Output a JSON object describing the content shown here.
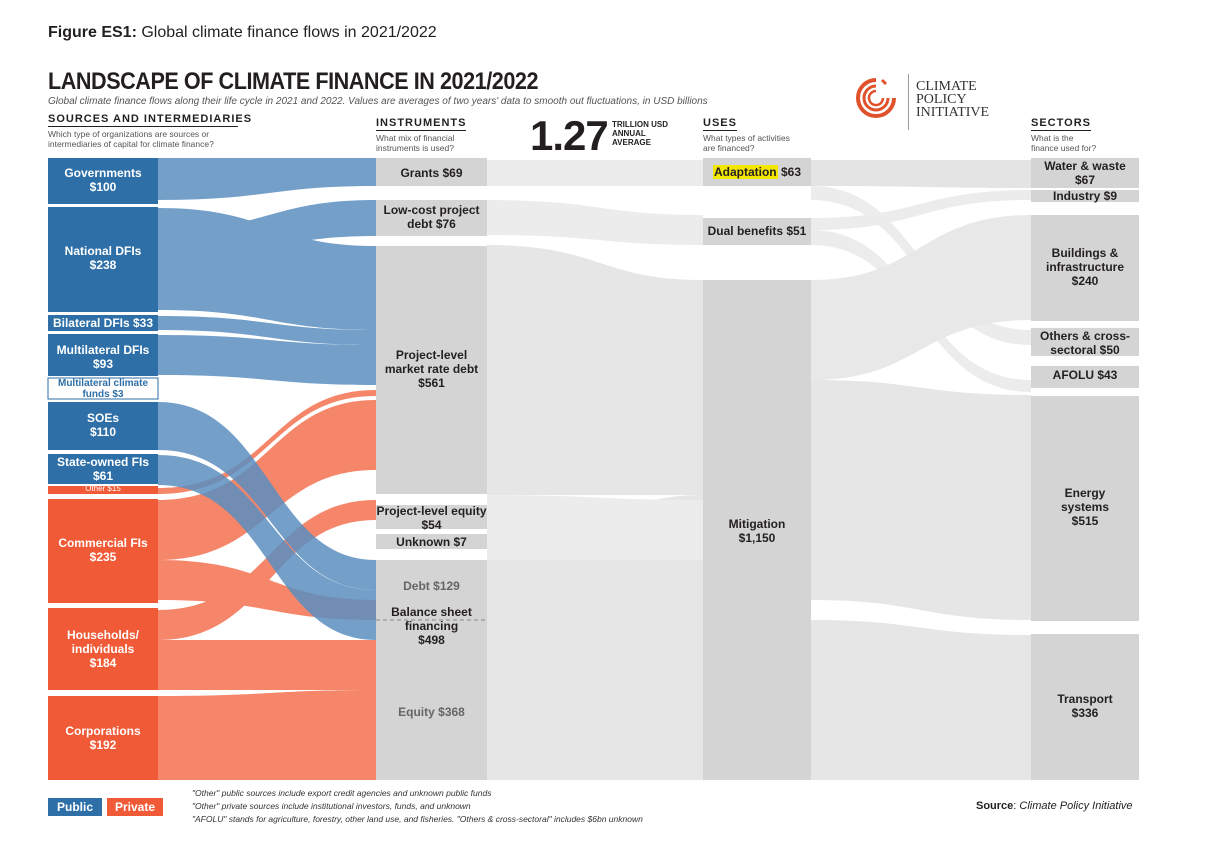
{
  "figure_caption": {
    "prefix": "Figure ES1:",
    "text": "Global climate finance flows in 2021/2022"
  },
  "title": "LANDSCAPE OF CLIMATE FINANCE IN 2021/2022",
  "subtitle": "Global climate finance flows along their life cycle in 2021 and 2022. Values are averages of two years' data to smooth out fluctuations, in USD billions",
  "headline": {
    "value": "1.27",
    "unit_line1": "TRILLION USD",
    "unit_line2": "ANNUAL",
    "unit_line3": "AVERAGE"
  },
  "logo": {
    "line1": "CLIMATE",
    "line2": "POLICY",
    "line3": "INITIATIVE",
    "icon": "cpi-swirl-logo-icon"
  },
  "columns": {
    "sources": {
      "title": "SOURCES AND INTERMEDIARIES",
      "question": "Which type of organizations are sources or intermediaries of capital for climate finance?"
    },
    "instruments": {
      "title": "INSTRUMENTS",
      "question": "What mix of financial instruments is used?"
    },
    "uses": {
      "title": "USES",
      "question": "What types of activities are financed?"
    },
    "sectors": {
      "title": "SECTORS",
      "question": "What is the finance used for?"
    }
  },
  "sources": [
    {
      "name": "Governments",
      "value": "$100",
      "type": "public"
    },
    {
      "name": "National DFIs",
      "value": "$238",
      "type": "public"
    },
    {
      "name": "Bilateral DFIs $33",
      "value": "",
      "type": "public"
    },
    {
      "name": "Multilateral DFIs",
      "value": "$93",
      "type": "public"
    },
    {
      "name": "Multilateral climate funds $3",
      "value": "",
      "type": "public"
    },
    {
      "name": "SOEs",
      "value": "$110",
      "type": "public"
    },
    {
      "name": "State-owned FIs",
      "value": "$61",
      "type": "public"
    },
    {
      "name": "Other $15",
      "value": "",
      "type": "private"
    },
    {
      "name": "Commercial FIs",
      "value": "$235",
      "type": "private"
    },
    {
      "name": "Households/ individuals",
      "value": "$184",
      "type": "private"
    },
    {
      "name": "Corporations",
      "value": "$192",
      "type": "private"
    }
  ],
  "instruments": [
    {
      "name": "Grants $69"
    },
    {
      "name": "Low-cost project debt $76"
    },
    {
      "name": "Project-level market rate debt",
      "value": "$561"
    },
    {
      "name": "Project-level equity",
      "value": "$54"
    },
    {
      "name": "Unknown $7"
    },
    {
      "name": "Debt $129"
    },
    {
      "name": "Balance sheet financing",
      "value": "$498"
    },
    {
      "name": "Equity $368"
    }
  ],
  "uses": [
    {
      "name": "Adaptation",
      "value": "$63"
    },
    {
      "name": "Dual benefits $51"
    },
    {
      "name": "Mitigation",
      "value": "$1,150"
    }
  ],
  "sectors": [
    {
      "name": "Water & waste",
      "value": "$67"
    },
    {
      "name": "Industry $9"
    },
    {
      "name": "Buildings & infrastructure",
      "value": "$240"
    },
    {
      "name": "Others & cross-sectoral $50"
    },
    {
      "name": "AFOLU $43"
    },
    {
      "name": "Energy systems",
      "value": "$515"
    },
    {
      "name": "Transport",
      "value": "$336"
    }
  ],
  "legend": {
    "public": "Public",
    "private": "Private"
  },
  "colors": {
    "public": "#2e6fa7",
    "private": "#f05a37",
    "flow_public": "#5b8fc0",
    "flow_private": "#f4795a",
    "grey_node": "#d4d4d4",
    "grey_flow": "#e6e6e6",
    "highlight": "#f3e600"
  },
  "footnotes": [
    "\"Other\" public sources include export credit agencies and unknown public funds",
    "\"Other\" private sources include institutional investors, funds, and unknown",
    "\"AFOLU\" stands for agriculture, forestry, other land use, and fisheries. \"Others & cross-sectoral\" includes $6bn unknown"
  ],
  "source_note": {
    "label": "Source",
    "text": "Climate Policy Initiative"
  }
}
